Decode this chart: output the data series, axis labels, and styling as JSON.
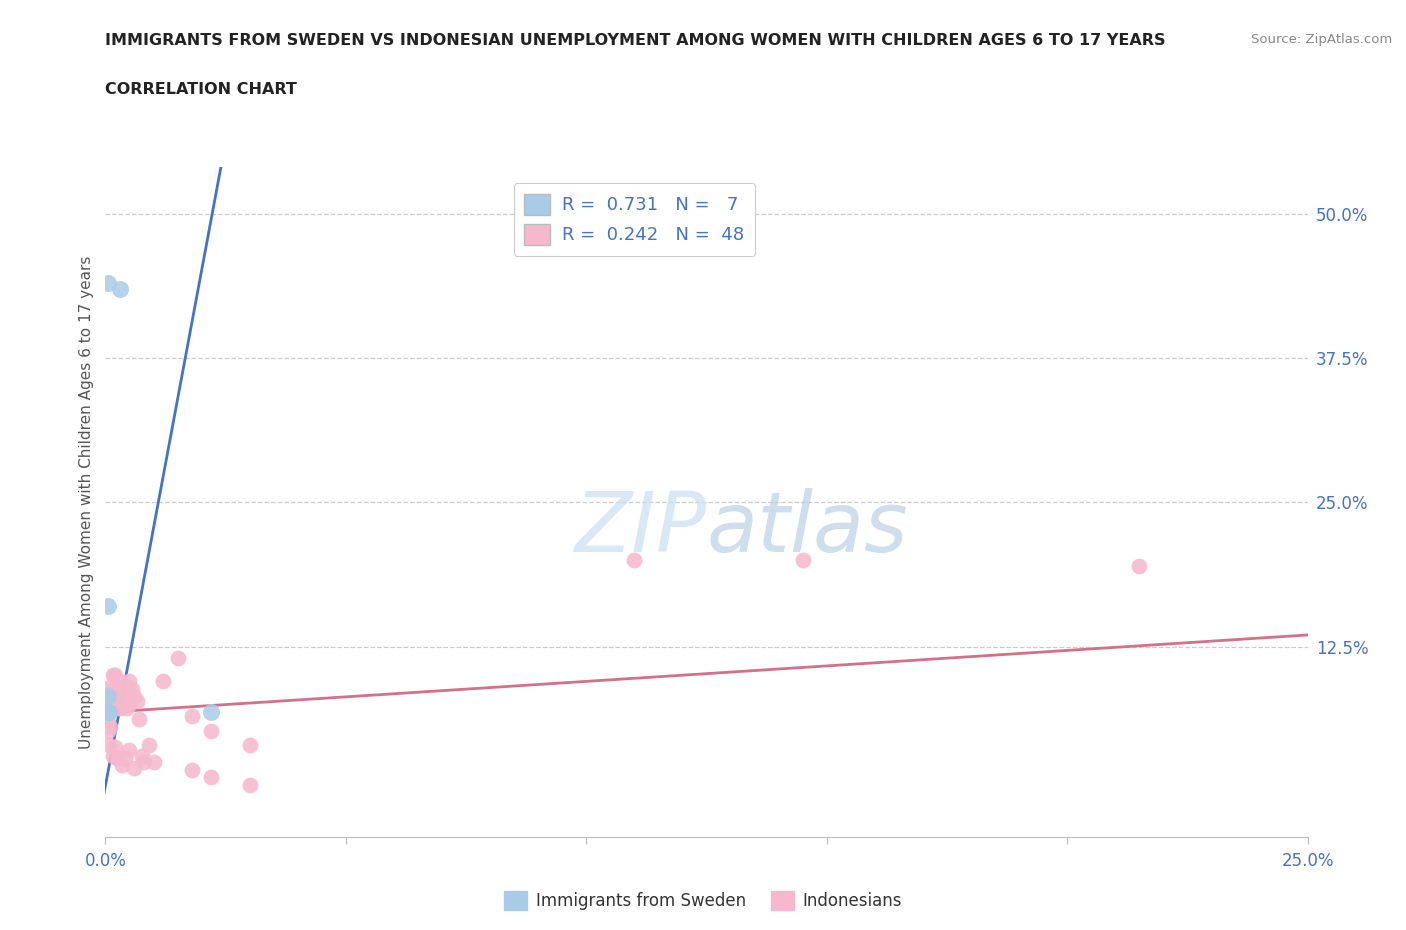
{
  "title": "IMMIGRANTS FROM SWEDEN VS INDONESIAN UNEMPLOYMENT AMONG WOMEN WITH CHILDREN AGES 6 TO 17 YEARS",
  "subtitle": "CORRELATION CHART",
  "source": "Source: ZipAtlas.com",
  "ylabel": "Unemployment Among Women with Children Ages 6 to 17 years",
  "xlim": [
    0.0,
    0.25
  ],
  "ylim": [
    -0.04,
    0.54
  ],
  "xticks": [
    0.0,
    0.05,
    0.1,
    0.15,
    0.2,
    0.25
  ],
  "xtick_labels": [
    "0.0%",
    "",
    "",
    "",
    "",
    "25.0%"
  ],
  "yticks_right": [
    0.0,
    0.125,
    0.25,
    0.375,
    0.5
  ],
  "ytick_labels_right": [
    "",
    "12.5%",
    "25.0%",
    "37.5%",
    "50.0%"
  ],
  "watermark_zip": "ZIP",
  "watermark_atlas": "atlas",
  "sweden_color": "#a8cce8",
  "indonesia_color": "#f5b8cc",
  "sweden_line_color": "#4472c4",
  "indonesia_line_color": "#d4708a",
  "legend_r1": "R =  0.731   N =   7",
  "legend_r2": "R =  0.242   N =  48",
  "sweden_x": [
    0.0005,
    0.003,
    0.0005,
    0.0005,
    0.0005,
    0.0008,
    0.022
  ],
  "sweden_y": [
    0.44,
    0.435,
    0.16,
    0.082,
    0.068,
    0.068,
    0.068
  ],
  "indonesia_x": [
    0.0005,
    0.0005,
    0.0005,
    0.0008,
    0.0008,
    0.001,
    0.001,
    0.001,
    0.0012,
    0.0015,
    0.0015,
    0.0018,
    0.002,
    0.002,
    0.002,
    0.0022,
    0.0025,
    0.0025,
    0.0028,
    0.0028,
    0.003,
    0.003,
    0.0032,
    0.0035,
    0.0035,
    0.0038,
    0.004,
    0.004,
    0.0042,
    0.0045,
    0.0045,
    0.0048,
    0.005,
    0.0055,
    0.006,
    0.0065,
    0.007,
    0.0075,
    0.008,
    0.009,
    0.012,
    0.015,
    0.018,
    0.022,
    0.03,
    0.11,
    0.145,
    0.215
  ],
  "indonesia_y": [
    0.068,
    0.06,
    0.052,
    0.08,
    0.072,
    0.09,
    0.082,
    0.055,
    0.078,
    0.1,
    0.088,
    0.082,
    0.1,
    0.09,
    0.078,
    0.088,
    0.082,
    0.072,
    0.095,
    0.08,
    0.088,
    0.072,
    0.082,
    0.09,
    0.075,
    0.082,
    0.092,
    0.078,
    0.086,
    0.082,
    0.072,
    0.075,
    0.095,
    0.088,
    0.082,
    0.078,
    0.062,
    0.03,
    0.025,
    0.04,
    0.095,
    0.115,
    0.065,
    0.052,
    0.04,
    0.2,
    0.2,
    0.195
  ],
  "indonesia_below_x": [
    0.0008,
    0.0015,
    0.002,
    0.0025,
    0.0035,
    0.004,
    0.005,
    0.006,
    0.01,
    0.018,
    0.022,
    0.03
  ],
  "indonesia_below_y": [
    0.04,
    0.03,
    0.038,
    0.028,
    0.022,
    0.028,
    0.035,
    0.02,
    0.025,
    0.018,
    0.012,
    0.005
  ],
  "sweden_trend_x": [
    -0.002,
    0.024
  ],
  "sweden_trend_y": [
    -0.04,
    0.54
  ],
  "indonesia_trend_x": [
    0.0,
    0.25
  ],
  "indonesia_trend_y": [
    0.068,
    0.135
  ]
}
